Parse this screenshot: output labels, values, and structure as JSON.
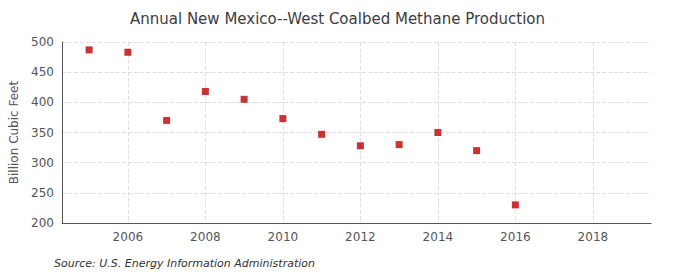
{
  "chart_data": {
    "type": "scatter",
    "title": "Annual New Mexico--West Coalbed Methane Production",
    "ylabel": "Billion Cubic Feet",
    "annotation": "Source: U.S. Energy Information Administration",
    "x": [
      2005,
      2006,
      2007,
      2008,
      2009,
      2010,
      2011,
      2012,
      2013,
      2014,
      2015,
      2016
    ],
    "values": [
      487,
      483,
      370,
      418,
      405,
      373,
      347,
      328,
      330,
      350,
      320,
      230
    ],
    "xlim": [
      2004.3,
      2019.5
    ],
    "ylim": [
      200,
      500
    ],
    "xticks": [
      2006,
      2008,
      2010,
      2012,
      2014,
      2016,
      2018
    ],
    "yticks": [
      200,
      250,
      300,
      350,
      400,
      450,
      500
    ],
    "color": "#bb0000",
    "marker": "square",
    "grid": true
  }
}
